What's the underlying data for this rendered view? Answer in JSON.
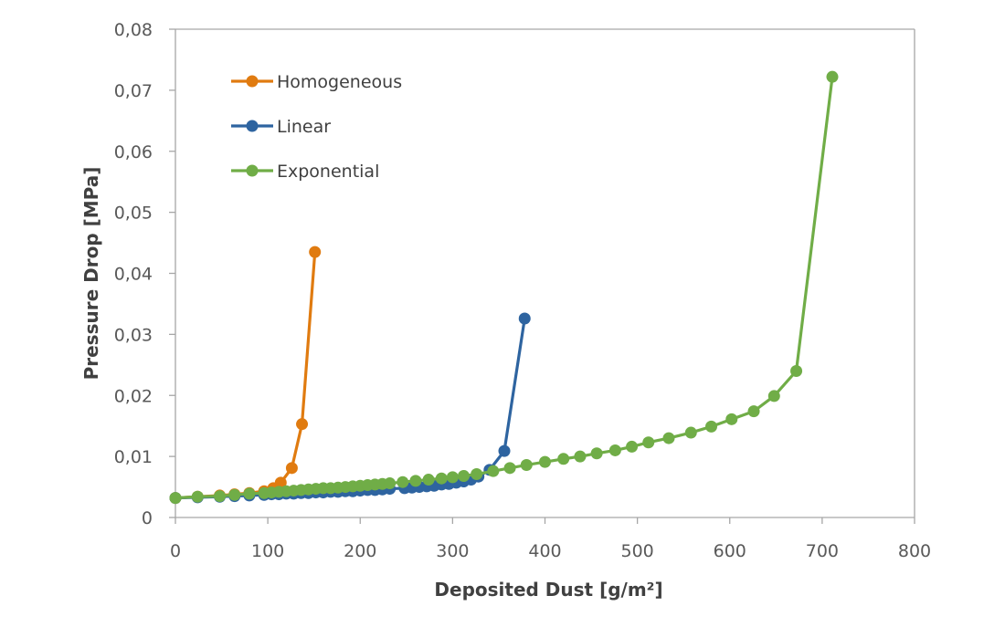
{
  "chart_data": {
    "type": "line",
    "title": "",
    "xlabel": "Deposited Dust [g/m²]",
    "ylabel": "Pressure Drop [MPa]",
    "xlim": [
      0,
      800
    ],
    "ylim": [
      0,
      0.08
    ],
    "x_ticks": [
      0,
      100,
      200,
      300,
      400,
      500,
      600,
      700,
      800
    ],
    "x_tick_labels": [
      "0",
      "100",
      "200",
      "300",
      "400",
      "500",
      "600",
      "700",
      "800"
    ],
    "y_ticks": [
      0,
      0.01,
      0.02,
      0.03,
      0.04,
      0.05,
      0.06,
      0.07,
      0.08
    ],
    "y_tick_labels": [
      "0",
      "0,01",
      "0,02",
      "0,03",
      "0,04",
      "0,05",
      "0,06",
      "0,07",
      "0,08"
    ],
    "grid": false,
    "legend_position": "top-left",
    "series": [
      {
        "name": "Homogeneous",
        "color": "#E07B10",
        "x": [
          0,
          24,
          48,
          64,
          80,
          96,
          106,
          114,
          126,
          137,
          151
        ],
        "y": [
          0.0032,
          0.0034,
          0.0036,
          0.0038,
          0.004,
          0.0043,
          0.0048,
          0.0057,
          0.0081,
          0.0153,
          0.0435
        ]
      },
      {
        "name": "Linear",
        "color": "#2E64A0",
        "x": [
          0,
          24,
          48,
          64,
          80,
          96,
          104,
          112,
          120,
          128,
          136,
          144,
          152,
          160,
          168,
          176,
          184,
          192,
          200,
          208,
          216,
          224,
          232,
          248,
          256,
          264,
          272,
          280,
          288,
          296,
          304,
          312,
          320,
          328,
          340,
          356,
          378
        ],
        "y": [
          0.0032,
          0.0033,
          0.0034,
          0.0035,
          0.0036,
          0.0037,
          0.0038,
          0.0038,
          0.0039,
          0.0039,
          0.004,
          0.004,
          0.0041,
          0.0041,
          0.0042,
          0.0042,
          0.0043,
          0.0043,
          0.0044,
          0.0045,
          0.0045,
          0.0046,
          0.0047,
          0.0048,
          0.0049,
          0.005,
          0.0051,
          0.0052,
          0.0054,
          0.0055,
          0.0057,
          0.0059,
          0.0062,
          0.0067,
          0.0078,
          0.0109,
          0.0326
        ]
      },
      {
        "name": "Exponential",
        "color": "#70AD47",
        "x": [
          0,
          24,
          48,
          64,
          80,
          96,
          104,
          112,
          120,
          128,
          136,
          144,
          152,
          160,
          168,
          176,
          184,
          192,
          200,
          208,
          216,
          224,
          232,
          246,
          260,
          274,
          288,
          300,
          312,
          326,
          344,
          362,
          380,
          400,
          420,
          438,
          456,
          476,
          494,
          512,
          534,
          558,
          580,
          602,
          626,
          648,
          672,
          711
        ],
        "y": [
          0.0032,
          0.0034,
          0.0035,
          0.0037,
          0.0039,
          0.004,
          0.0041,
          0.0042,
          0.0043,
          0.0044,
          0.0045,
          0.0046,
          0.0047,
          0.0048,
          0.0048,
          0.0049,
          0.005,
          0.0051,
          0.0052,
          0.0053,
          0.0054,
          0.0055,
          0.0056,
          0.0058,
          0.006,
          0.0062,
          0.0064,
          0.0066,
          0.0068,
          0.0071,
          0.0076,
          0.0081,
          0.0086,
          0.0091,
          0.0096,
          0.01,
          0.0105,
          0.011,
          0.0116,
          0.0123,
          0.013,
          0.0139,
          0.0149,
          0.0161,
          0.0174,
          0.0199,
          0.024,
          0.0722
        ]
      }
    ]
  }
}
